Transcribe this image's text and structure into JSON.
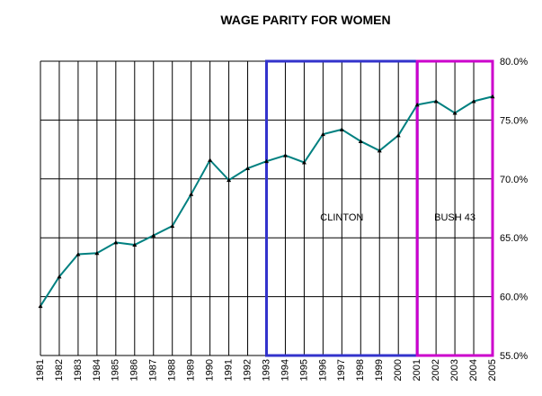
{
  "chart_data": {
    "type": "line",
    "title": "WAGE PARITY FOR WOMEN",
    "categories": [
      "1981",
      "1982",
      "1983",
      "1984",
      "1985",
      "1986",
      "1987",
      "1988",
      "1989",
      "1990",
      "1991",
      "1992",
      "1993",
      "1994",
      "1995",
      "1996",
      "1997",
      "1998",
      "1999",
      "2000",
      "2001",
      "2002",
      "2003",
      "2004",
      "2005"
    ],
    "series": [
      {
        "color": "#008080",
        "values": [
          59.2,
          61.7,
          63.6,
          63.7,
          64.6,
          64.4,
          65.2,
          66.0,
          68.7,
          71.6,
          69.9,
          70.9,
          71.5,
          72.0,
          71.4,
          73.8,
          74.2,
          73.2,
          72.4,
          73.7,
          76.3,
          76.6,
          75.6,
          76.6,
          77.0
        ]
      }
    ],
    "ylim": [
      55,
      80
    ],
    "yticks": [
      {
        "value": 55,
        "label": "55.0%"
      },
      {
        "value": 60,
        "label": "60.0%"
      },
      {
        "value": 65,
        "label": "65.0%"
      },
      {
        "value": 70,
        "label": "70.0%"
      },
      {
        "value": 75,
        "label": "75.0%"
      },
      {
        "value": 80,
        "label": "80.0%"
      }
    ],
    "grid": true,
    "annotations": [
      {
        "label": "CLINTON",
        "start": "1993",
        "end": "2001",
        "color": "#3333cc"
      },
      {
        "label": "BUSH 43",
        "start": "2001",
        "end": "2005",
        "color": "#cc00cc"
      }
    ]
  }
}
